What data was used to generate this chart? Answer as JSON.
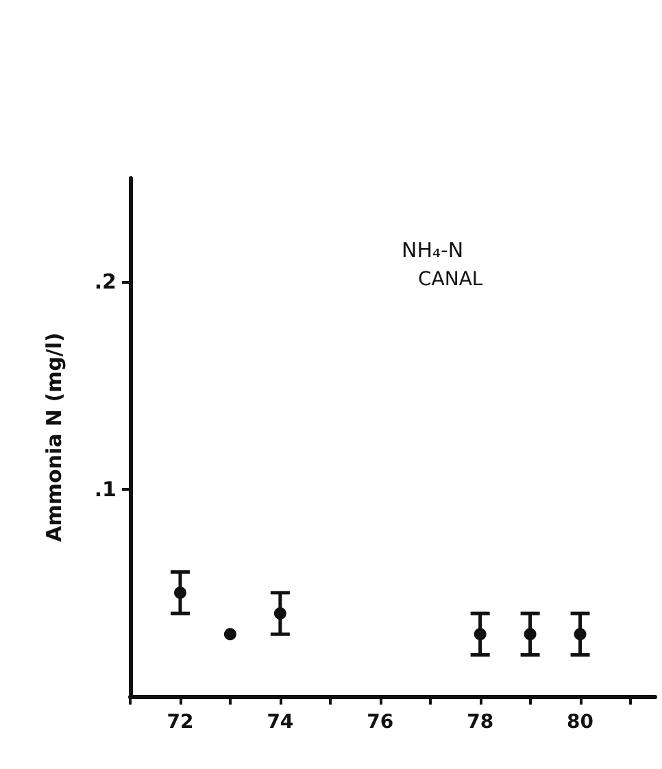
{
  "chart_data": {
    "type": "scatter",
    "title": "NH₄-N",
    "subtitle": "CANAL",
    "ylabel": "Ammonia N (mg/l)",
    "x": [
      72,
      73,
      74,
      78,
      79,
      80
    ],
    "values": [
      0.05,
      0.03,
      0.04,
      0.03,
      0.03,
      0.03
    ],
    "errors": [
      0.01,
      null,
      0.01,
      0.01,
      0.01,
      0.01
    ],
    "color": "#111111",
    "marker": "circle",
    "xlim": [
      71,
      81.5
    ],
    "xticks": [
      {
        "value": 71,
        "label": null
      },
      72,
      {
        "value": 73,
        "label": null
      },
      74,
      {
        "value": 75,
        "label": null
      },
      76,
      {
        "value": 77,
        "label": null
      },
      78,
      {
        "value": 79,
        "label": null
      },
      80,
      {
        "value": 81,
        "label": null
      }
    ],
    "ylim": [
      0,
      0.25
    ],
    "yticks": [
      {
        "value": 0.1,
        "label": ".1"
      },
      {
        "value": 0.2,
        "label": ".2"
      }
    ],
    "grid": false
  }
}
